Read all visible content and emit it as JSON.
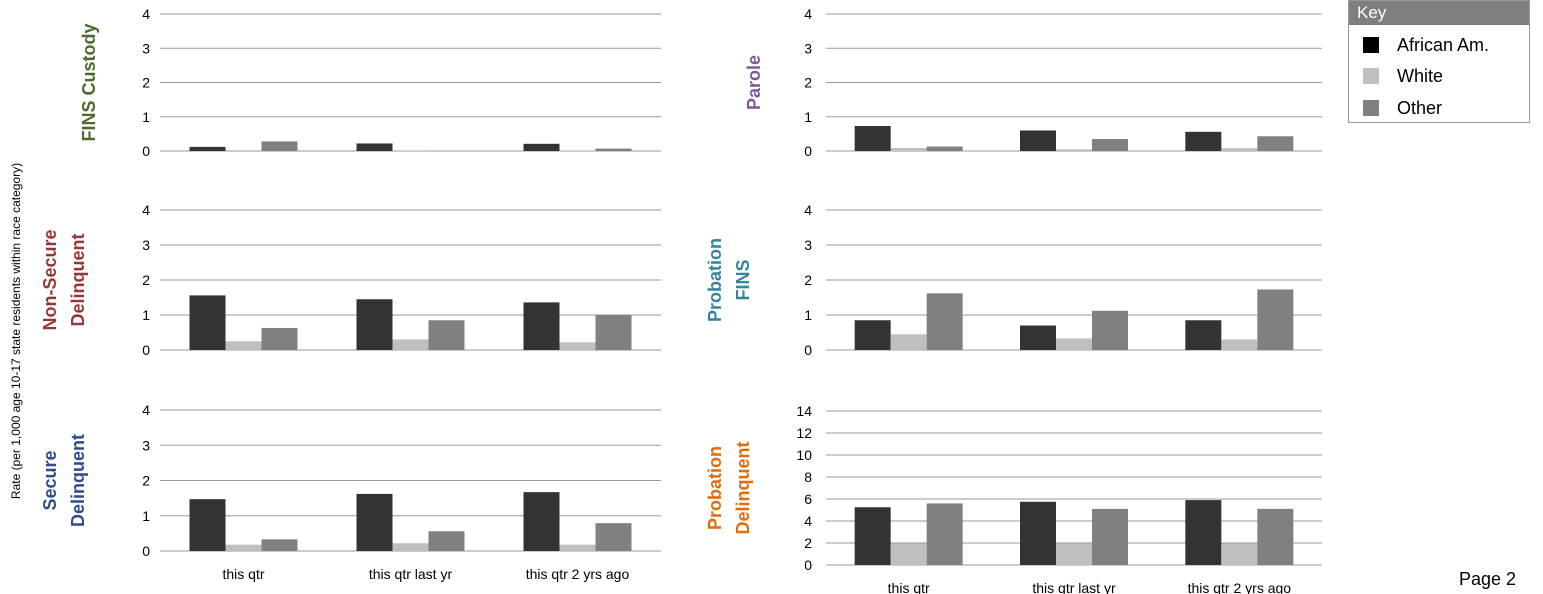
{
  "ylabel": "Rate (per 1,000 age 10-17 state residents within race category)",
  "legend": {
    "title": "Key",
    "items": [
      {
        "label": "African Am.",
        "color": "#000000"
      },
      {
        "label": "White",
        "color": "#bfbfbf"
      },
      {
        "label": "Other",
        "color": "#808080"
      }
    ]
  },
  "page_label": "Page 2",
  "chart_data": [
    {
      "type": "bar",
      "title_lines": [
        "FINS Custody"
      ],
      "title_color": "#4a6b2a",
      "categories": [
        "this qtr",
        "this qtr last yr",
        "this qtr 2 yrs ago"
      ],
      "ylim": [
        0,
        4
      ],
      "yticks": [
        0,
        1,
        2,
        3,
        4
      ],
      "series": [
        {
          "name": "African Am.",
          "color": "#333333",
          "values": [
            0.12,
            0.22,
            0.21
          ]
        },
        {
          "name": "White",
          "color": "#bfbfbf",
          "values": [
            0.0,
            0.02,
            0.02
          ]
        },
        {
          "name": "Other",
          "color": "#808080",
          "values": [
            0.28,
            0.0,
            0.07
          ]
        }
      ],
      "show_xticks": false
    },
    {
      "type": "bar",
      "title_lines": [
        "Parole"
      ],
      "title_color": "#7a5a9a",
      "categories": [
        "this qtr",
        "this qtr last yr",
        "this qtr 2 yrs ago"
      ],
      "ylim": [
        0,
        4
      ],
      "yticks": [
        0,
        1,
        2,
        3,
        4
      ],
      "series": [
        {
          "name": "African Am.",
          "color": "#333333",
          "values": [
            0.73,
            0.6,
            0.56
          ]
        },
        {
          "name": "White",
          "color": "#bfbfbf",
          "values": [
            0.09,
            0.05,
            0.08
          ]
        },
        {
          "name": "Other",
          "color": "#808080",
          "values": [
            0.13,
            0.35,
            0.43
          ]
        }
      ],
      "show_xticks": false
    },
    {
      "type": "bar",
      "title_lines": [
        "Non-Secure",
        "Delinquent"
      ],
      "title_color": "#953735",
      "categories": [
        "this qtr",
        "this qtr last yr",
        "this qtr 2 yrs ago"
      ],
      "ylim": [
        0,
        4
      ],
      "yticks": [
        0,
        1,
        2,
        3,
        4
      ],
      "series": [
        {
          "name": "African Am.",
          "color": "#333333",
          "values": [
            1.56,
            1.45,
            1.36
          ]
        },
        {
          "name": "White",
          "color": "#bfbfbf",
          "values": [
            0.25,
            0.3,
            0.22
          ]
        },
        {
          "name": "Other",
          "color": "#808080",
          "values": [
            0.63,
            0.85,
            1.0
          ]
        }
      ],
      "show_xticks": false
    },
    {
      "type": "bar",
      "title_lines": [
        "Probation",
        "FINS"
      ],
      "title_color": "#31859c",
      "categories": [
        "this qtr",
        "this qtr last yr",
        "this qtr 2 yrs ago"
      ],
      "ylim": [
        0,
        4
      ],
      "yticks": [
        0,
        1,
        2,
        3,
        4
      ],
      "series": [
        {
          "name": "African Am.",
          "color": "#333333",
          "values": [
            0.85,
            0.7,
            0.85
          ]
        },
        {
          "name": "White",
          "color": "#bfbfbf",
          "values": [
            0.45,
            0.33,
            0.3
          ]
        },
        {
          "name": "Other",
          "color": "#808080",
          "values": [
            1.62,
            1.12,
            1.73
          ]
        }
      ],
      "show_xticks": false
    },
    {
      "type": "bar",
      "title_lines": [
        "Secure",
        "Delinquent"
      ],
      "title_color": "#2f4a8f",
      "categories": [
        "this qtr",
        "this qtr last yr",
        "this qtr 2 yrs ago"
      ],
      "ylim": [
        0,
        4
      ],
      "yticks": [
        0,
        1,
        2,
        3,
        4
      ],
      "series": [
        {
          "name": "African Am.",
          "color": "#333333",
          "values": [
            1.47,
            1.62,
            1.67
          ]
        },
        {
          "name": "White",
          "color": "#bfbfbf",
          "values": [
            0.18,
            0.22,
            0.18
          ]
        },
        {
          "name": "Other",
          "color": "#808080",
          "values": [
            0.33,
            0.56,
            0.79
          ]
        }
      ],
      "show_xticks": true
    },
    {
      "type": "bar",
      "title_lines": [
        "Probation",
        "Delinquent"
      ],
      "title_color": "#e36c09",
      "categories": [
        "this qtr",
        "this qtr last yr",
        "this qtr 2 yrs ago"
      ],
      "ylim": [
        0,
        14
      ],
      "yticks": [
        0,
        2,
        4,
        6,
        8,
        10,
        12,
        14
      ],
      "series": [
        {
          "name": "African Am.",
          "color": "#333333",
          "values": [
            5.25,
            5.75,
            5.9
          ]
        },
        {
          "name": "White",
          "color": "#bfbfbf",
          "values": [
            1.95,
            1.95,
            1.95
          ]
        },
        {
          "name": "Other",
          "color": "#808080",
          "values": [
            5.6,
            5.1,
            5.1
          ]
        }
      ],
      "show_xticks": true
    }
  ]
}
